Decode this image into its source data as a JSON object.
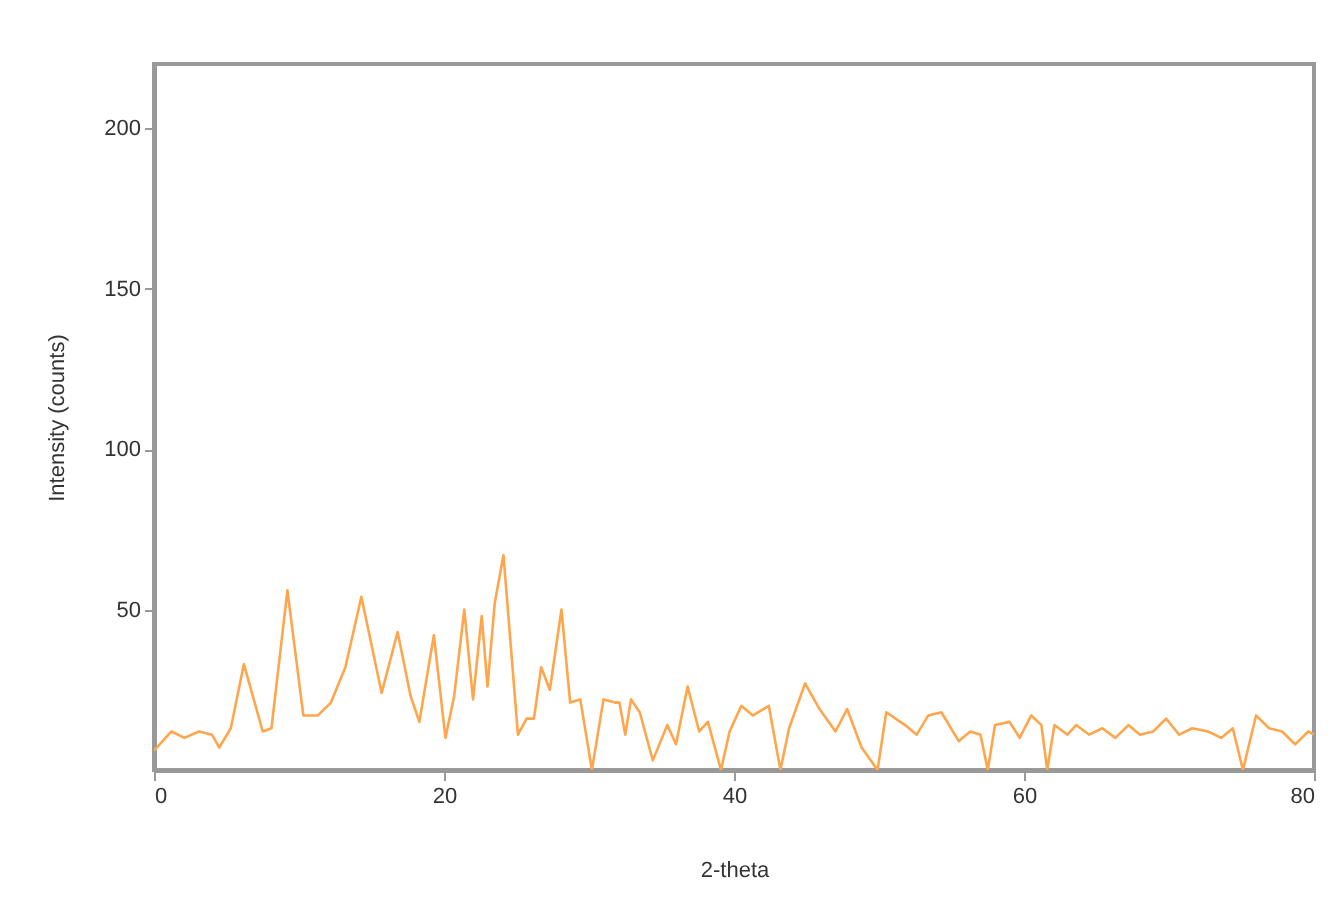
{
  "chart_data": {
    "type": "line",
    "xlabel": "2-theta",
    "ylabel": "Intensity (counts)",
    "xlim": [
      0,
      80
    ],
    "xticks": [
      0,
      20,
      40,
      60,
      80
    ],
    "ylim": [
      0,
      220
    ],
    "yticks": [
      50,
      100,
      150,
      200
    ],
    "grid": false,
    "marker": "none",
    "line_style": "solid",
    "x": [
      0,
      1.2,
      2.1,
      3.1,
      4.0,
      4.5,
      5.3,
      6.2,
      7.5,
      8.1,
      9.2,
      10.3,
      11.3,
      12.2,
      13.2,
      14.3,
      15.7,
      16.8,
      17.7,
      18.3,
      19.3,
      20.1,
      20.7,
      21.4,
      22.0,
      22.6,
      23.0,
      23.5,
      24.1,
      25.1,
      25.7,
      26.2,
      26.7,
      27.3,
      28.1,
      28.7,
      29.4,
      30.2,
      31.0,
      31.8,
      32.1,
      32.5,
      32.9,
      33.5,
      34.4,
      35.4,
      36.0,
      36.8,
      37.6,
      38.2,
      39.1,
      39.7,
      40.5,
      41.3,
      42.4,
      43.2,
      43.8,
      44.9,
      45.9,
      47.0,
      47.8,
      48.8,
      49.9,
      50.5,
      51.8,
      52.6,
      53.4,
      54.3,
      55.5,
      56.3,
      57.0,
      57.5,
      58.0,
      59.0,
      59.7,
      60.5,
      61.2,
      61.6,
      62.1,
      63.0,
      63.6,
      64.5,
      65.4,
      66.3,
      67.2,
      68.0,
      68.9,
      69.8,
      70.7,
      71.6,
      72.7,
      73.6,
      74.4,
      75.1,
      76.0,
      76.9,
      77.8,
      78.7,
      79.6,
      80
    ],
    "series": [
      {
        "color": "#ffa64d",
        "values": [
          6,
          12,
          10,
          12,
          11,
          7,
          13,
          33,
          12,
          13,
          56,
          17,
          17,
          21,
          32,
          54,
          24,
          43,
          23,
          15,
          42,
          10,
          23,
          50,
          22,
          48,
          26,
          52,
          67,
          11,
          16,
          16,
          32,
          25,
          50,
          21,
          22,
          0,
          22,
          21,
          21,
          11,
          22,
          18,
          3,
          14,
          8,
          26,
          12,
          15,
          0,
          12,
          20,
          17,
          20,
          0,
          13,
          27,
          19,
          12,
          19,
          7,
          0,
          18,
          14,
          11,
          17,
          18,
          9,
          12,
          11,
          0,
          14,
          15,
          10,
          17,
          14,
          0,
          14,
          11,
          14,
          11,
          13,
          10,
          14,
          11,
          12,
          16,
          11,
          13,
          12,
          10,
          13,
          0,
          17,
          13,
          12,
          8,
          12,
          11
        ]
      }
    ]
  }
}
